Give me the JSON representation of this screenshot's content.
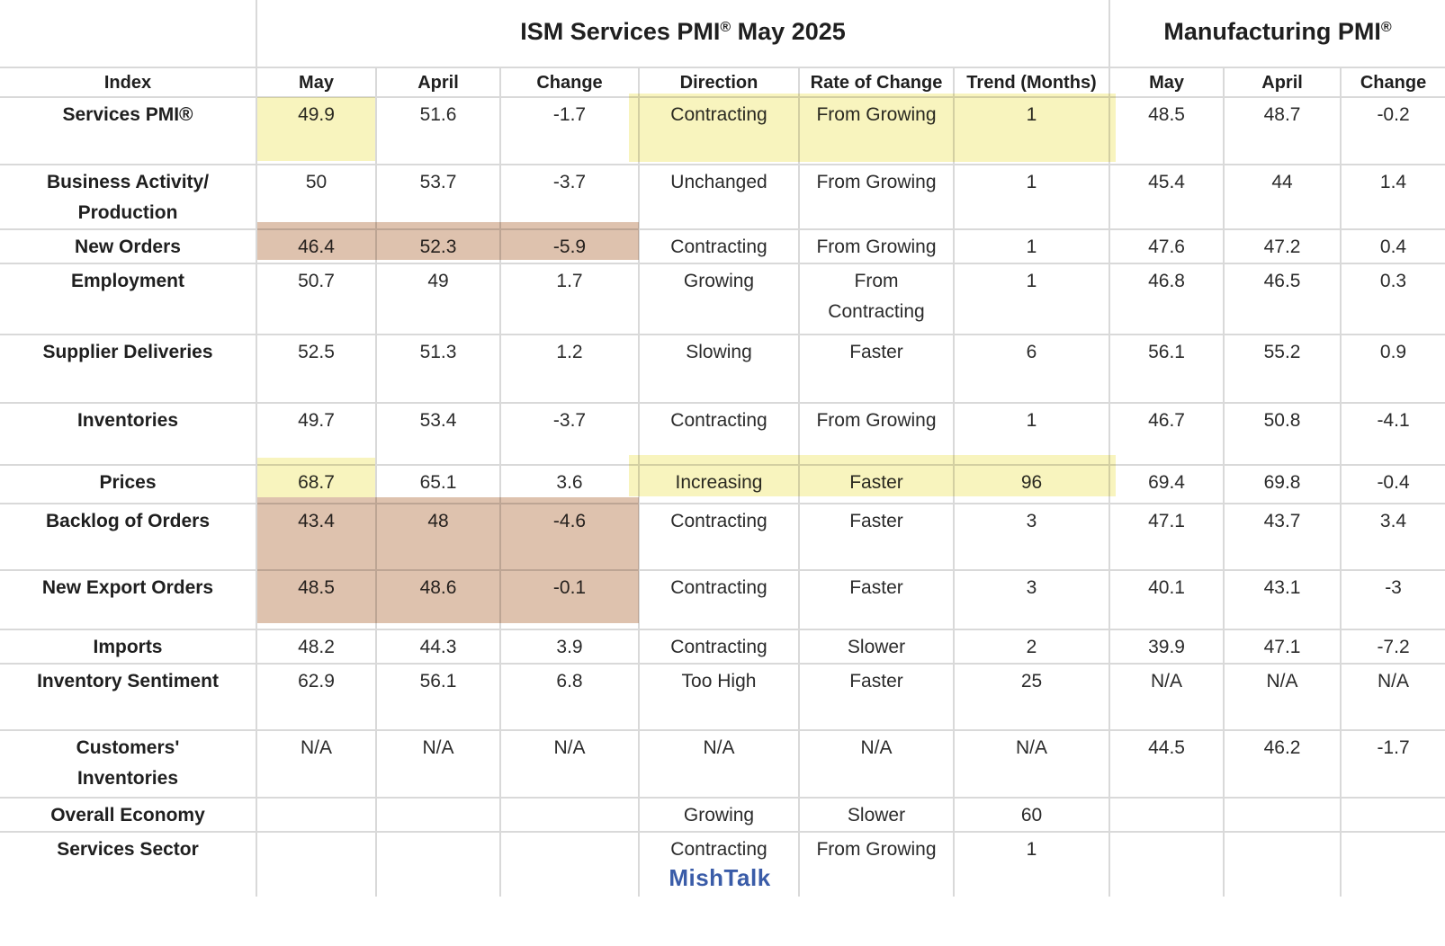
{
  "header_groups": {
    "services": {
      "text": "ISM Services PMI",
      "reg": "®",
      "suffix": " May 2025"
    },
    "manufacturing": {
      "text": "Manufacturing PMI",
      "reg": "®"
    }
  },
  "chart_data": {
    "type": "table",
    "title": "ISM Services PMI® May 2025",
    "title_right": "Manufacturing PMI®",
    "columns": [
      "Index",
      "May",
      "April",
      "Change",
      "Direction",
      "Rate of Change",
      "Trend (Months)",
      "May",
      "April",
      "Change"
    ],
    "rows": [
      {
        "label": "Services PMI®",
        "cells": [
          "49.9",
          "51.6",
          "-1.7",
          "Contracting",
          "From Growing",
          "1",
          "48.5",
          "48.7",
          "-0.2"
        ]
      },
      {
        "label": "Business Activity/\nProduction",
        "cells": [
          "50",
          "53.7",
          "-3.7",
          "Unchanged",
          "From Growing",
          "1",
          "45.4",
          "44",
          "1.4"
        ]
      },
      {
        "label": "New Orders",
        "cells": [
          "46.4",
          "52.3",
          "-5.9",
          "Contracting",
          "From Growing",
          "1",
          "47.6",
          "47.2",
          "0.4"
        ]
      },
      {
        "label": "Employment",
        "cells": [
          "50.7",
          "49",
          "1.7",
          "Growing",
          "From\nContracting",
          "1",
          "46.8",
          "46.5",
          "0.3"
        ]
      },
      {
        "label": "Supplier Deliveries",
        "cells": [
          "52.5",
          "51.3",
          "1.2",
          "Slowing",
          "Faster",
          "6",
          "56.1",
          "55.2",
          "0.9"
        ]
      },
      {
        "label": "Inventories",
        "cells": [
          "49.7",
          "53.4",
          "-3.7",
          "Contracting",
          "From Growing",
          "1",
          "46.7",
          "50.8",
          "-4.1"
        ]
      },
      {
        "label": "Prices",
        "cells": [
          "68.7",
          "65.1",
          "3.6",
          "Increasing",
          "Faster",
          "96",
          "69.4",
          "69.8",
          "-0.4"
        ]
      },
      {
        "label": "Backlog of Orders",
        "cells": [
          "43.4",
          "48",
          "-4.6",
          "Contracting",
          "Faster",
          "3",
          "47.1",
          "43.7",
          "3.4"
        ]
      },
      {
        "label": "New Export Orders",
        "cells": [
          "48.5",
          "48.6",
          "-0.1",
          "Contracting",
          "Faster",
          "3",
          "40.1",
          "43.1",
          "-3"
        ]
      },
      {
        "label": "Imports",
        "cells": [
          "48.2",
          "44.3",
          "3.9",
          "Contracting",
          "Slower",
          "2",
          "39.9",
          "47.1",
          "-7.2"
        ]
      },
      {
        "label": "Inventory Sentiment",
        "cells": [
          "62.9",
          "56.1",
          "6.8",
          "Too High",
          "Faster",
          "25",
          "N/A",
          "N/A",
          "N/A"
        ]
      },
      {
        "label": "Customers'\nInventories",
        "cells": [
          "N/A",
          "N/A",
          "N/A",
          "N/A",
          "N/A",
          "N/A",
          "44.5",
          "46.2",
          "-1.7"
        ]
      },
      {
        "label": "Overall Economy",
        "cells": [
          "",
          "",
          "",
          "Growing",
          "Slower",
          "60",
          "",
          "",
          ""
        ]
      },
      {
        "label": "Services Sector",
        "cells": [
          "",
          "",
          "",
          "Contracting",
          "From Growing",
          "1",
          "",
          "",
          ""
        ]
      }
    ],
    "highlights": [
      {
        "color": "yellow",
        "cells": "Services PMI row: May value and Direction / Rate of Change / Trend"
      },
      {
        "color": "tan",
        "cells": "New Orders row: May / April / Change values"
      },
      {
        "color": "yellow",
        "cells": "Prices row: May value and Direction / Rate of Change / Trend"
      },
      {
        "color": "tan",
        "cells": "Backlog of Orders and New Export Orders rows: May / April / Change values"
      }
    ],
    "watermark": "MishTalk",
    "layout": {
      "grid": "on",
      "legend": "none"
    }
  },
  "colors": {
    "highlight_yellow": "#F8F4BE",
    "highlight_tan": "#DEC2AE",
    "watermark_blue": "#3A5CA8",
    "grid": "#D9D9D9"
  }
}
